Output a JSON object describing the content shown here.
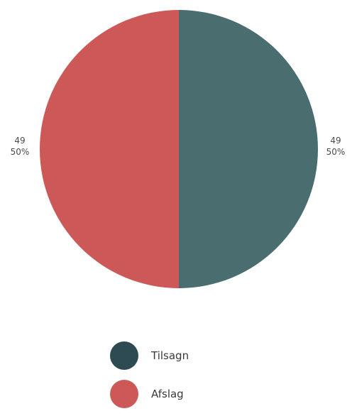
{
  "chart_data": {
    "type": "pie",
    "slices": [
      {
        "label": "Tilsagn",
        "value": 49,
        "percent": "50%",
        "color": "#4a6d70"
      },
      {
        "label": "Afslag",
        "value": 49,
        "percent": "50%",
        "color": "#cc5858"
      }
    ],
    "legend": {
      "position": "bottom",
      "items": [
        {
          "label": "Tilsagn",
          "color": "#2e4a52"
        },
        {
          "label": "Afslag",
          "color": "#cc5858"
        }
      ]
    },
    "data_labels": {
      "right": {
        "value": "49",
        "percent": "50%"
      },
      "left": {
        "value": "49",
        "percent": "50%"
      }
    }
  }
}
